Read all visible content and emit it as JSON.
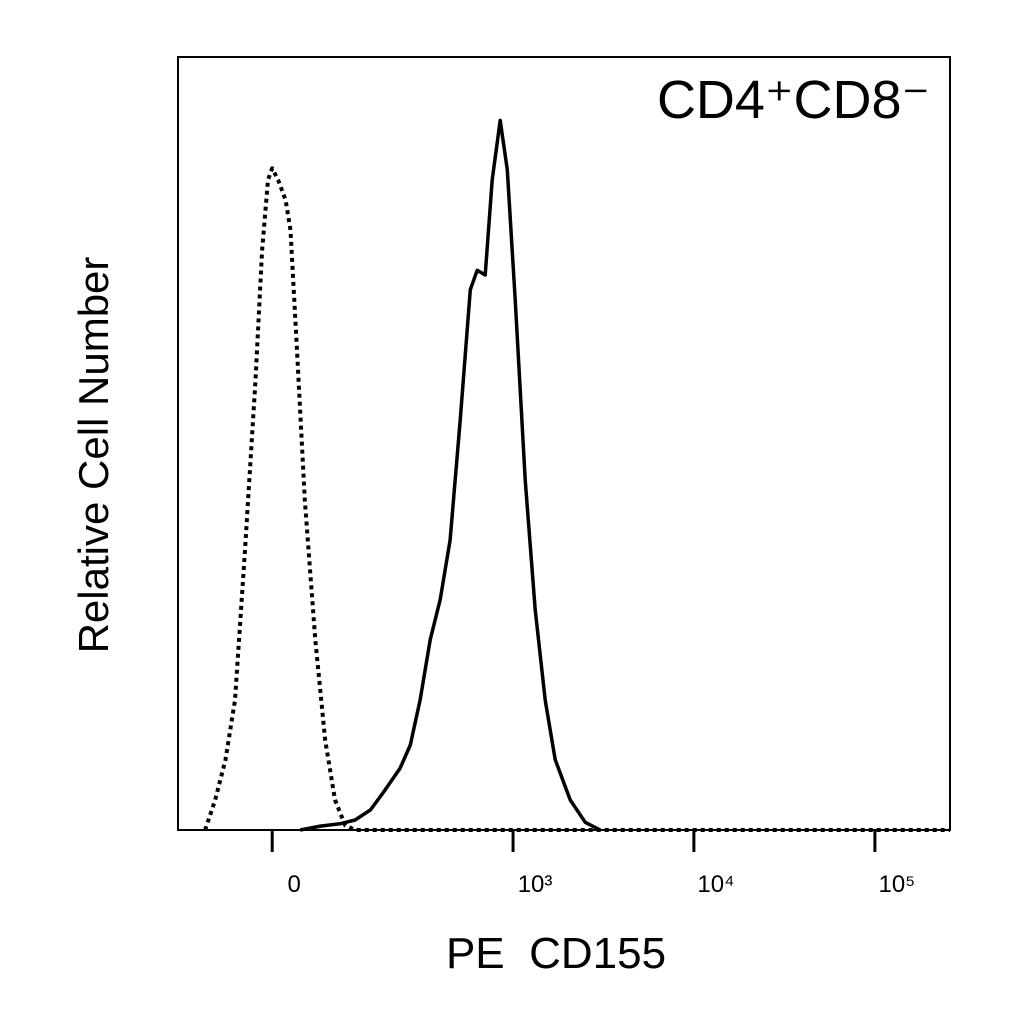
{
  "chart_data": {
    "type": "line",
    "annotation": "CD4⁺CD8⁻",
    "x_label": "PE  CD155",
    "y_label": "Relative Cell Number",
    "xscale": "biexponential",
    "xlim": [
      -141,
      260000
    ],
    "xticks": [
      0,
      {
        "value": 1000,
        "label": "10³"
      },
      {
        "value": 10000,
        "label": "10⁴"
      },
      {
        "value": 100000,
        "label": "10⁵"
      }
    ],
    "ylim": [
      0,
      100
    ],
    "series": [
      {
        "color": "#000000",
        "style": "dotted",
        "x": [
          -90,
          -74,
          -59,
          -46,
          -33,
          -20,
          -12,
          -5,
          0,
          7,
          16,
          22,
          30,
          40,
          54,
          68,
          83,
          100,
          118,
          260000
        ],
        "values": [
          0,
          3.9,
          9.1,
          16.8,
          36.2,
          58.2,
          75,
          84.1,
          85.6,
          84.1,
          81.5,
          77.6,
          62.1,
          42.7,
          24.6,
          11.6,
          3.9,
          0.6,
          0,
          0
        ]
      },
      {
        "color": "#000000",
        "style": "solid",
        "x": [
          34,
          61,
          91,
          118,
          150,
          186,
          229,
          263,
          300,
          343,
          391,
          445,
          507,
          578,
          632,
          700,
          766,
          848,
          929,
          1028,
          1168,
          1327,
          1507,
          1712,
          2072,
          2509,
          3036
        ],
        "values": [
          0,
          0.5,
          0.8,
          1.3,
          2.6,
          5.2,
          8.0,
          11.0,
          16.8,
          24.6,
          29.8,
          37.5,
          53.0,
          69.9,
          72.4,
          71.8,
          84.1,
          91.8,
          85.4,
          68.6,
          45.3,
          28.5,
          16.8,
          9.1,
          3.9,
          1.0,
          0
        ]
      }
    ]
  }
}
